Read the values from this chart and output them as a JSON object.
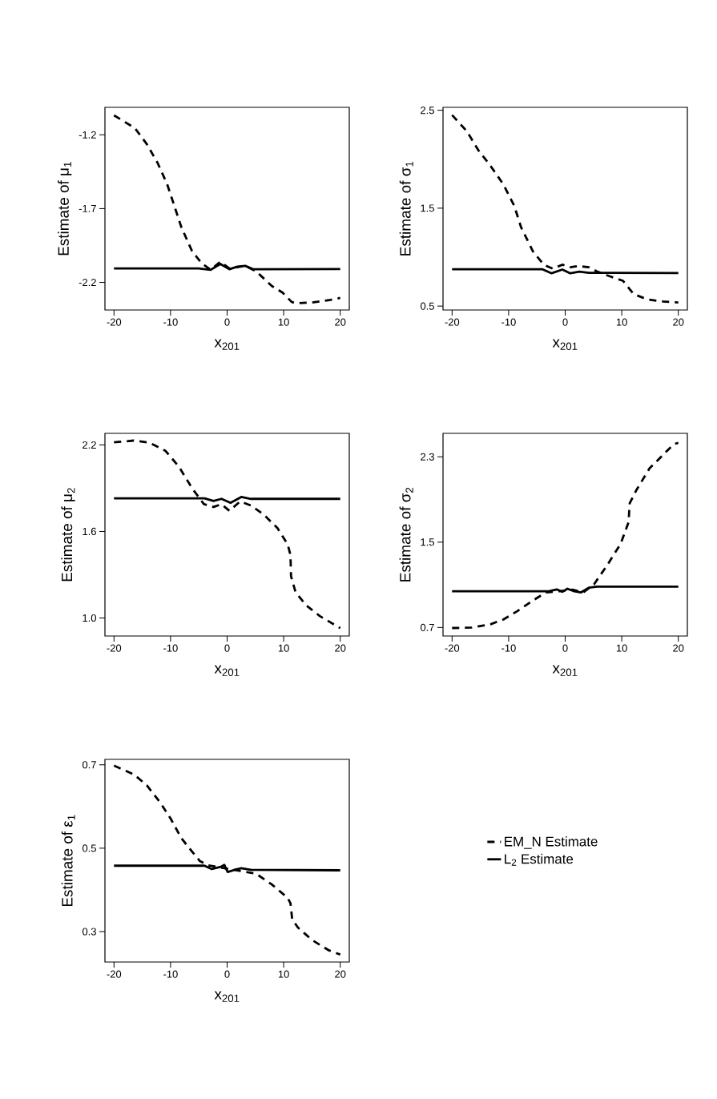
{
  "chart_data": [
    {
      "type": "line",
      "xlabel": "x$_{201}$",
      "ylabel": "Estimate of μ$_{1}$",
      "xlim": [
        -21.6,
        21.6
      ],
      "ylim": [
        -2.387,
        -1.014
      ],
      "xticks": [
        -20,
        -10,
        0,
        10,
        20
      ],
      "yticks": [
        -2.2,
        -1.7,
        -1.2
      ],
      "series": [
        {
          "color": "#000000",
          "line_style": "dashed",
          "x": [
            -20,
            -16.3,
            -14.2,
            -12.3,
            -10.6,
            -9.5,
            -8.1,
            -6.2,
            -4.5,
            -2.9,
            -1.2,
            0.4,
            3.2,
            5.1,
            7.9,
            9.8,
            11.4,
            12.1,
            15.0,
            18.3,
            20
          ],
          "values": [
            -1.068,
            -1.155,
            -1.263,
            -1.39,
            -1.535,
            -1.662,
            -1.825,
            -1.988,
            -2.07,
            -2.115,
            -2.06,
            -2.105,
            -2.088,
            -2.124,
            -2.224,
            -2.269,
            -2.332,
            -2.341,
            -2.336,
            -2.318,
            -2.305
          ]
        },
        {
          "color": "#000000",
          "line_style": "solid",
          "x": [
            -20,
            -5,
            -2.9,
            -1.2,
            0.4,
            1.8,
            3.2,
            4.6,
            20
          ],
          "values": [
            -2.106,
            -2.106,
            -2.115,
            -2.075,
            -2.111,
            -2.093,
            -2.088,
            -2.111,
            -2.109
          ]
        }
      ]
    },
    {
      "type": "line",
      "xlabel": "x$_{201}$",
      "ylabel": "Estimate of σ$_{1}$",
      "xlim": [
        -21.6,
        21.6
      ],
      "ylim": [
        0.46,
        2.53
      ],
      "xticks": [
        -20,
        -10,
        0,
        10,
        20
      ],
      "yticks": [
        0.5,
        1.5,
        2.5
      ],
      "series": [
        {
          "color": "#000000",
          "line_style": "dashed",
          "x": [
            -20,
            -17.4,
            -15.4,
            -13.2,
            -10.9,
            -9.0,
            -7.8,
            -5.7,
            -3.8,
            -2.2,
            -0.5,
            0.9,
            2.3,
            4.2,
            5.6,
            7.4,
            10.2,
            12.1,
            14.5,
            17.3,
            20
          ],
          "values": [
            2.451,
            2.287,
            2.096,
            1.932,
            1.74,
            1.523,
            1.305,
            1.059,
            0.923,
            0.882,
            0.923,
            0.896,
            0.909,
            0.896,
            0.855,
            0.814,
            0.759,
            0.623,
            0.568,
            0.547,
            0.536
          ]
        },
        {
          "color": "#000000",
          "line_style": "solid",
          "x": [
            -20,
            -4,
            -2.4,
            -0.5,
            0.9,
            2.5,
            4.2,
            20
          ],
          "values": [
            0.876,
            0.876,
            0.835,
            0.873,
            0.835,
            0.851,
            0.84,
            0.837
          ]
        }
      ]
    },
    {
      "type": "line",
      "xlabel": "x$_{201}$",
      "ylabel": "Estimate of μ$_{2}$",
      "xlim": [
        -21.6,
        21.6
      ],
      "ylim": [
        0.875,
        2.28
      ],
      "xticks": [
        -20,
        -10,
        0,
        10,
        20
      ],
      "yticks": [
        {
          "value": 1,
          "label": "1.0"
        },
        1.6,
        2.2
      ],
      "series": [
        {
          "color": "#000000",
          "line_style": "dashed",
          "x": [
            -20,
            -16.5,
            -13.7,
            -10.9,
            -8.5,
            -6.2,
            -4.1,
            -2.4,
            -1.0,
            0.4,
            2.3,
            4.2,
            6.5,
            8.9,
            10.7,
            11.2,
            11.3,
            12.1,
            14.0,
            16.4,
            20
          ],
          "values": [
            2.218,
            2.23,
            2.215,
            2.159,
            2.048,
            1.9,
            1.789,
            1.77,
            1.789,
            1.743,
            1.808,
            1.78,
            1.716,
            1.623,
            1.511,
            1.438,
            1.29,
            1.179,
            1.087,
            1.013,
            0.93
          ]
        },
        {
          "color": "#000000",
          "line_style": "solid",
          "x": [
            -20,
            -4,
            -2.4,
            -1.0,
            0.6,
            2.5,
            4.2,
            20
          ],
          "values": [
            1.83,
            1.83,
            1.812,
            1.826,
            1.798,
            1.839,
            1.826,
            1.826
          ]
        }
      ]
    },
    {
      "type": "line",
      "xlabel": "x$_{201}$",
      "ylabel": "Estimate of σ$_{2}$",
      "xlim": [
        -21.6,
        21.6
      ],
      "ylim": [
        0.62,
        2.52
      ],
      "xticks": [
        -20,
        -10,
        0,
        10,
        20
      ],
      "yticks": [
        0.7,
        1.5,
        2.3
      ],
      "series": [
        {
          "color": "#000000",
          "line_style": "dashed",
          "x": [
            -20,
            -16.5,
            -13.2,
            -10.9,
            -8.5,
            -5.7,
            -3.4,
            -1.0,
            1.3,
            3.2,
            5.1,
            7.4,
            9.8,
            11.2,
            11.4,
            12.6,
            14.9,
            17.3,
            19.2,
            20
          ],
          "values": [
            0.695,
            0.7,
            0.73,
            0.776,
            0.852,
            0.953,
            1.029,
            1.04,
            1.054,
            1.029,
            1.105,
            1.282,
            1.484,
            1.686,
            1.863,
            1.989,
            2.191,
            2.318,
            2.419,
            2.431
          ]
        },
        {
          "color": "#000000",
          "line_style": "solid",
          "x": [
            -20,
            -4,
            -2.9,
            -1.5,
            -0.5,
            0.4,
            1.6,
            2.8,
            4.2,
            5.6,
            20
          ],
          "values": [
            1.04,
            1.04,
            1.04,
            1.057,
            1.035,
            1.063,
            1.04,
            1.029,
            1.073,
            1.083,
            1.083
          ]
        }
      ]
    },
    {
      "type": "line",
      "xlabel": "x$_{201}$",
      "ylabel": "Estimate of ε$_{1}$",
      "xlim": [
        -21.6,
        21.6
      ],
      "ylim": [
        0.227,
        0.713
      ],
      "xticks": [
        -20,
        -10,
        0,
        10,
        20
      ],
      "yticks": [
        0.3,
        0.5,
        0.7
      ],
      "legend": "right",
      "series": [
        {
          "name": "EM_N Estimate",
          "color": "#000000",
          "line_style": "dashed",
          "x": [
            -20,
            -16.5,
            -14.2,
            -11.8,
            -9.9,
            -8.1,
            -6.2,
            -4.8,
            -3.4,
            -0.5,
            5.1,
            7.9,
            10.7,
            11.2,
            11.5,
            12.5,
            15.0,
            18.0,
            20
          ],
          "values": [
            0.698,
            0.677,
            0.651,
            0.609,
            0.569,
            0.524,
            0.492,
            0.469,
            0.459,
            0.452,
            0.439,
            0.413,
            0.381,
            0.368,
            0.33,
            0.31,
            0.28,
            0.255,
            0.245
          ]
        },
        {
          "name": "L$_{2}$ Estimate",
          "color": "#000000",
          "line_style": "solid",
          "x": [
            -20,
            -4,
            -2.7,
            -1.0,
            -0.5,
            0.1,
            1.3,
            2.5,
            4.2,
            20
          ],
          "values": [
            0.458,
            0.458,
            0.45,
            0.456,
            0.46,
            0.443,
            0.448,
            0.452,
            0.448,
            0.447
          ]
        }
      ]
    }
  ]
}
